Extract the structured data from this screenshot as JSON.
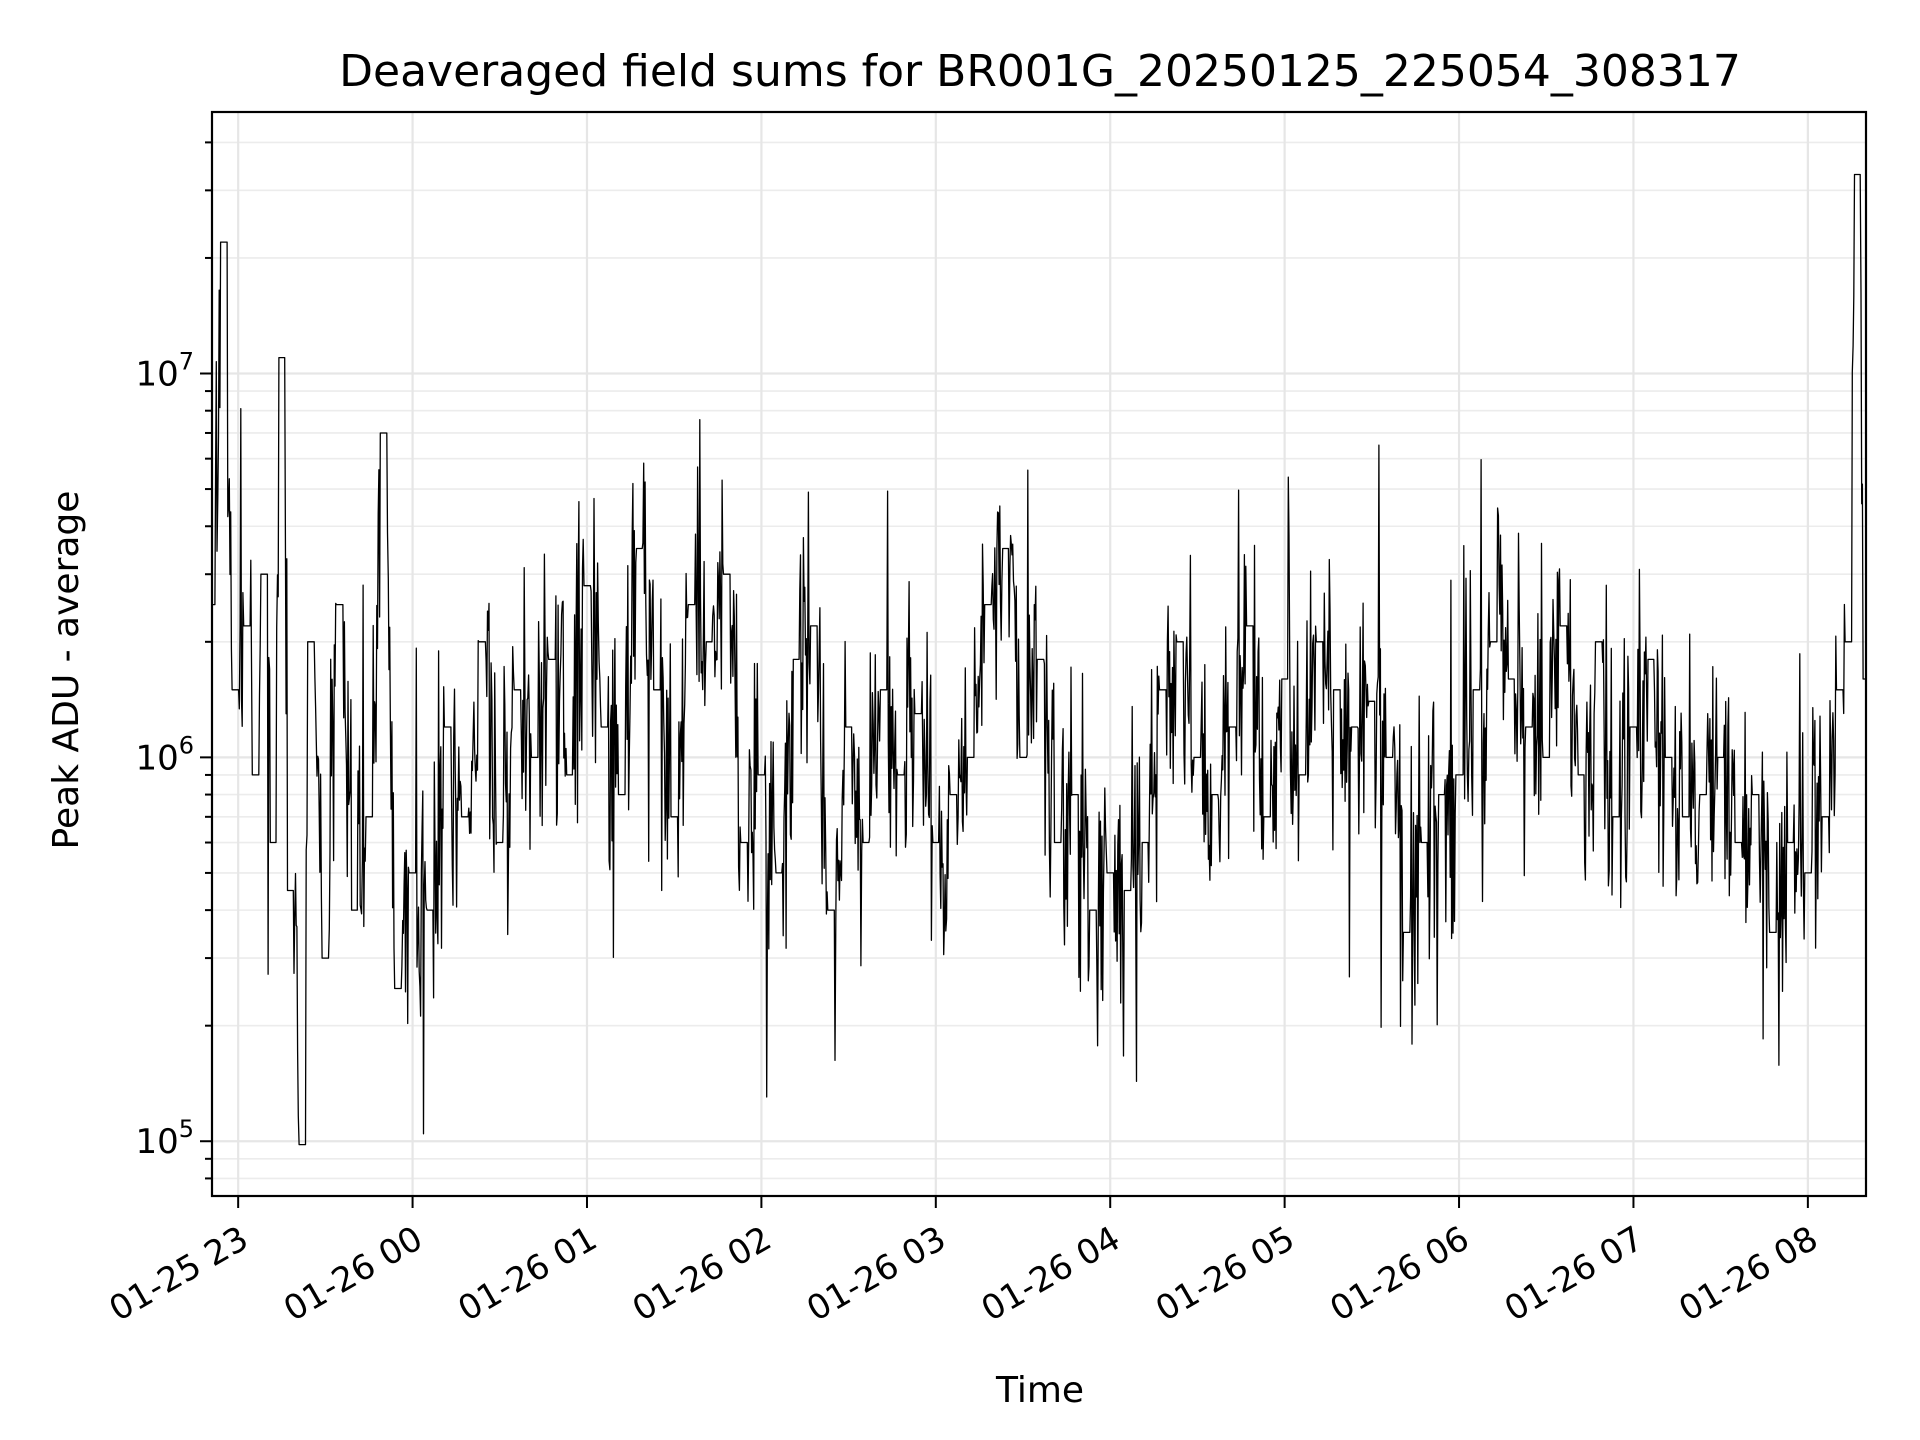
{
  "chart_data": {
    "type": "line",
    "title": "Deaveraged field sums for BR001G_20250125_225054_308317",
    "xlabel": "Time",
    "ylabel": "Peak ADU - average",
    "y_scale": "log",
    "ylim": [
      72000,
      48000000
    ],
    "xlim": [
      "2025-01-25 22:51",
      "2025-01-26 08:20"
    ],
    "grid": true,
    "x_ticks": [
      "01-25 23",
      "01-26 00",
      "01-26 01",
      "01-26 02",
      "01-26 03",
      "01-26 04",
      "01-26 05",
      "01-26 06",
      "01-26 07",
      "01-26 08"
    ],
    "y_ticks": [
      {
        "value": 100000,
        "base": "10",
        "exp": "5"
      },
      {
        "value": 1000000,
        "base": "10",
        "exp": "6"
      },
      {
        "value": 10000000,
        "base": "10",
        "exp": "7"
      }
    ],
    "series": [
      {
        "color": "#000000",
        "x": [
          "2025-01-25 22:51",
          "2025-01-25 22:55",
          "2025-01-25 22:59",
          "2025-01-25 23:03",
          "2025-01-25 23:06",
          "2025-01-25 23:09",
          "2025-01-25 23:12",
          "2025-01-25 23:15",
          "2025-01-25 23:18",
          "2025-01-25 23:22",
          "2025-01-25 23:25",
          "2025-01-25 23:30",
          "2025-01-25 23:35",
          "2025-01-25 23:40",
          "2025-01-25 23:45",
          "2025-01-25 23:50",
          "2025-01-25 23:55",
          "2025-01-26 00:00",
          "2025-01-26 00:06",
          "2025-01-26 00:12",
          "2025-01-26 00:18",
          "2025-01-26 00:24",
          "2025-01-26 00:30",
          "2025-01-26 00:36",
          "2025-01-26 00:42",
          "2025-01-26 00:48",
          "2025-01-26 00:54",
          "2025-01-26 01:00",
          "2025-01-26 01:06",
          "2025-01-26 01:12",
          "2025-01-26 01:18",
          "2025-01-26 01:24",
          "2025-01-26 01:30",
          "2025-01-26 01:36",
          "2025-01-26 01:42",
          "2025-01-26 01:48",
          "2025-01-26 01:54",
          "2025-01-26 02:00",
          "2025-01-26 02:06",
          "2025-01-26 02:12",
          "2025-01-26 02:18",
          "2025-01-26 02:24",
          "2025-01-26 02:30",
          "2025-01-26 02:36",
          "2025-01-26 02:42",
          "2025-01-26 02:48",
          "2025-01-26 02:54",
          "2025-01-26 03:00",
          "2025-01-26 03:06",
          "2025-01-26 03:12",
          "2025-01-26 03:18",
          "2025-01-26 03:24",
          "2025-01-26 03:30",
          "2025-01-26 03:36",
          "2025-01-26 03:42",
          "2025-01-26 03:48",
          "2025-01-26 03:54",
          "2025-01-26 04:00",
          "2025-01-26 04:06",
          "2025-01-26 04:12",
          "2025-01-26 04:18",
          "2025-01-26 04:24",
          "2025-01-26 04:30",
          "2025-01-26 04:36",
          "2025-01-26 04:42",
          "2025-01-26 04:48",
          "2025-01-26 04:54",
          "2025-01-26 05:00",
          "2025-01-26 05:06",
          "2025-01-26 05:12",
          "2025-01-26 05:18",
          "2025-01-26 05:24",
          "2025-01-26 05:30",
          "2025-01-26 05:36",
          "2025-01-26 05:42",
          "2025-01-26 05:48",
          "2025-01-26 05:54",
          "2025-01-26 06:00",
          "2025-01-26 06:06",
          "2025-01-26 06:12",
          "2025-01-26 06:18",
          "2025-01-26 06:24",
          "2025-01-26 06:30",
          "2025-01-26 06:36",
          "2025-01-26 06:42",
          "2025-01-26 06:48",
          "2025-01-26 06:54",
          "2025-01-26 07:00",
          "2025-01-26 07:06",
          "2025-01-26 07:12",
          "2025-01-26 07:18",
          "2025-01-26 07:24",
          "2025-01-26 07:30",
          "2025-01-26 07:36",
          "2025-01-26 07:42",
          "2025-01-26 07:48",
          "2025-01-26 07:54",
          "2025-01-26 08:00",
          "2025-01-26 08:06",
          "2025-01-26 08:11",
          "2025-01-26 08:14",
          "2025-01-26 08:17",
          "2025-01-26 08:20"
        ],
        "y": [
          2500000,
          22000000,
          1500000,
          2200000,
          900000,
          3000000,
          600000,
          11000000,
          450000,
          98000,
          2000000,
          300000,
          2500000,
          400000,
          700000,
          7000000,
          250000,
          500000,
          400000,
          1200000,
          700000,
          2000000,
          600000,
          1500000,
          1000000,
          1800000,
          900000,
          2800000,
          1200000,
          800000,
          3500000,
          1500000,
          700000,
          2500000,
          2000000,
          3000000,
          600000,
          900000,
          500000,
          1800000,
          2200000,
          400000,
          1200000,
          600000,
          1500000,
          900000,
          1300000,
          600000,
          800000,
          1000000,
          2500000,
          3500000,
          1000000,
          1800000,
          600000,
          800000,
          400000,
          500000,
          450000,
          600000,
          1500000,
          2000000,
          1000000,
          800000,
          1200000,
          2200000,
          700000,
          1600000,
          900000,
          2000000,
          1500000,
          1200000,
          1400000,
          1000000,
          350000,
          600000,
          800000,
          900000,
          1500000,
          2000000,
          1600000,
          1200000,
          1000000,
          2200000,
          900000,
          2000000,
          700000,
          1200000,
          1800000,
          1000000,
          700000,
          800000,
          1000000,
          600000,
          800000,
          350000,
          600000,
          500000,
          700000,
          1500000,
          2000000,
          33000000,
          1600000
        ]
      }
    ]
  }
}
